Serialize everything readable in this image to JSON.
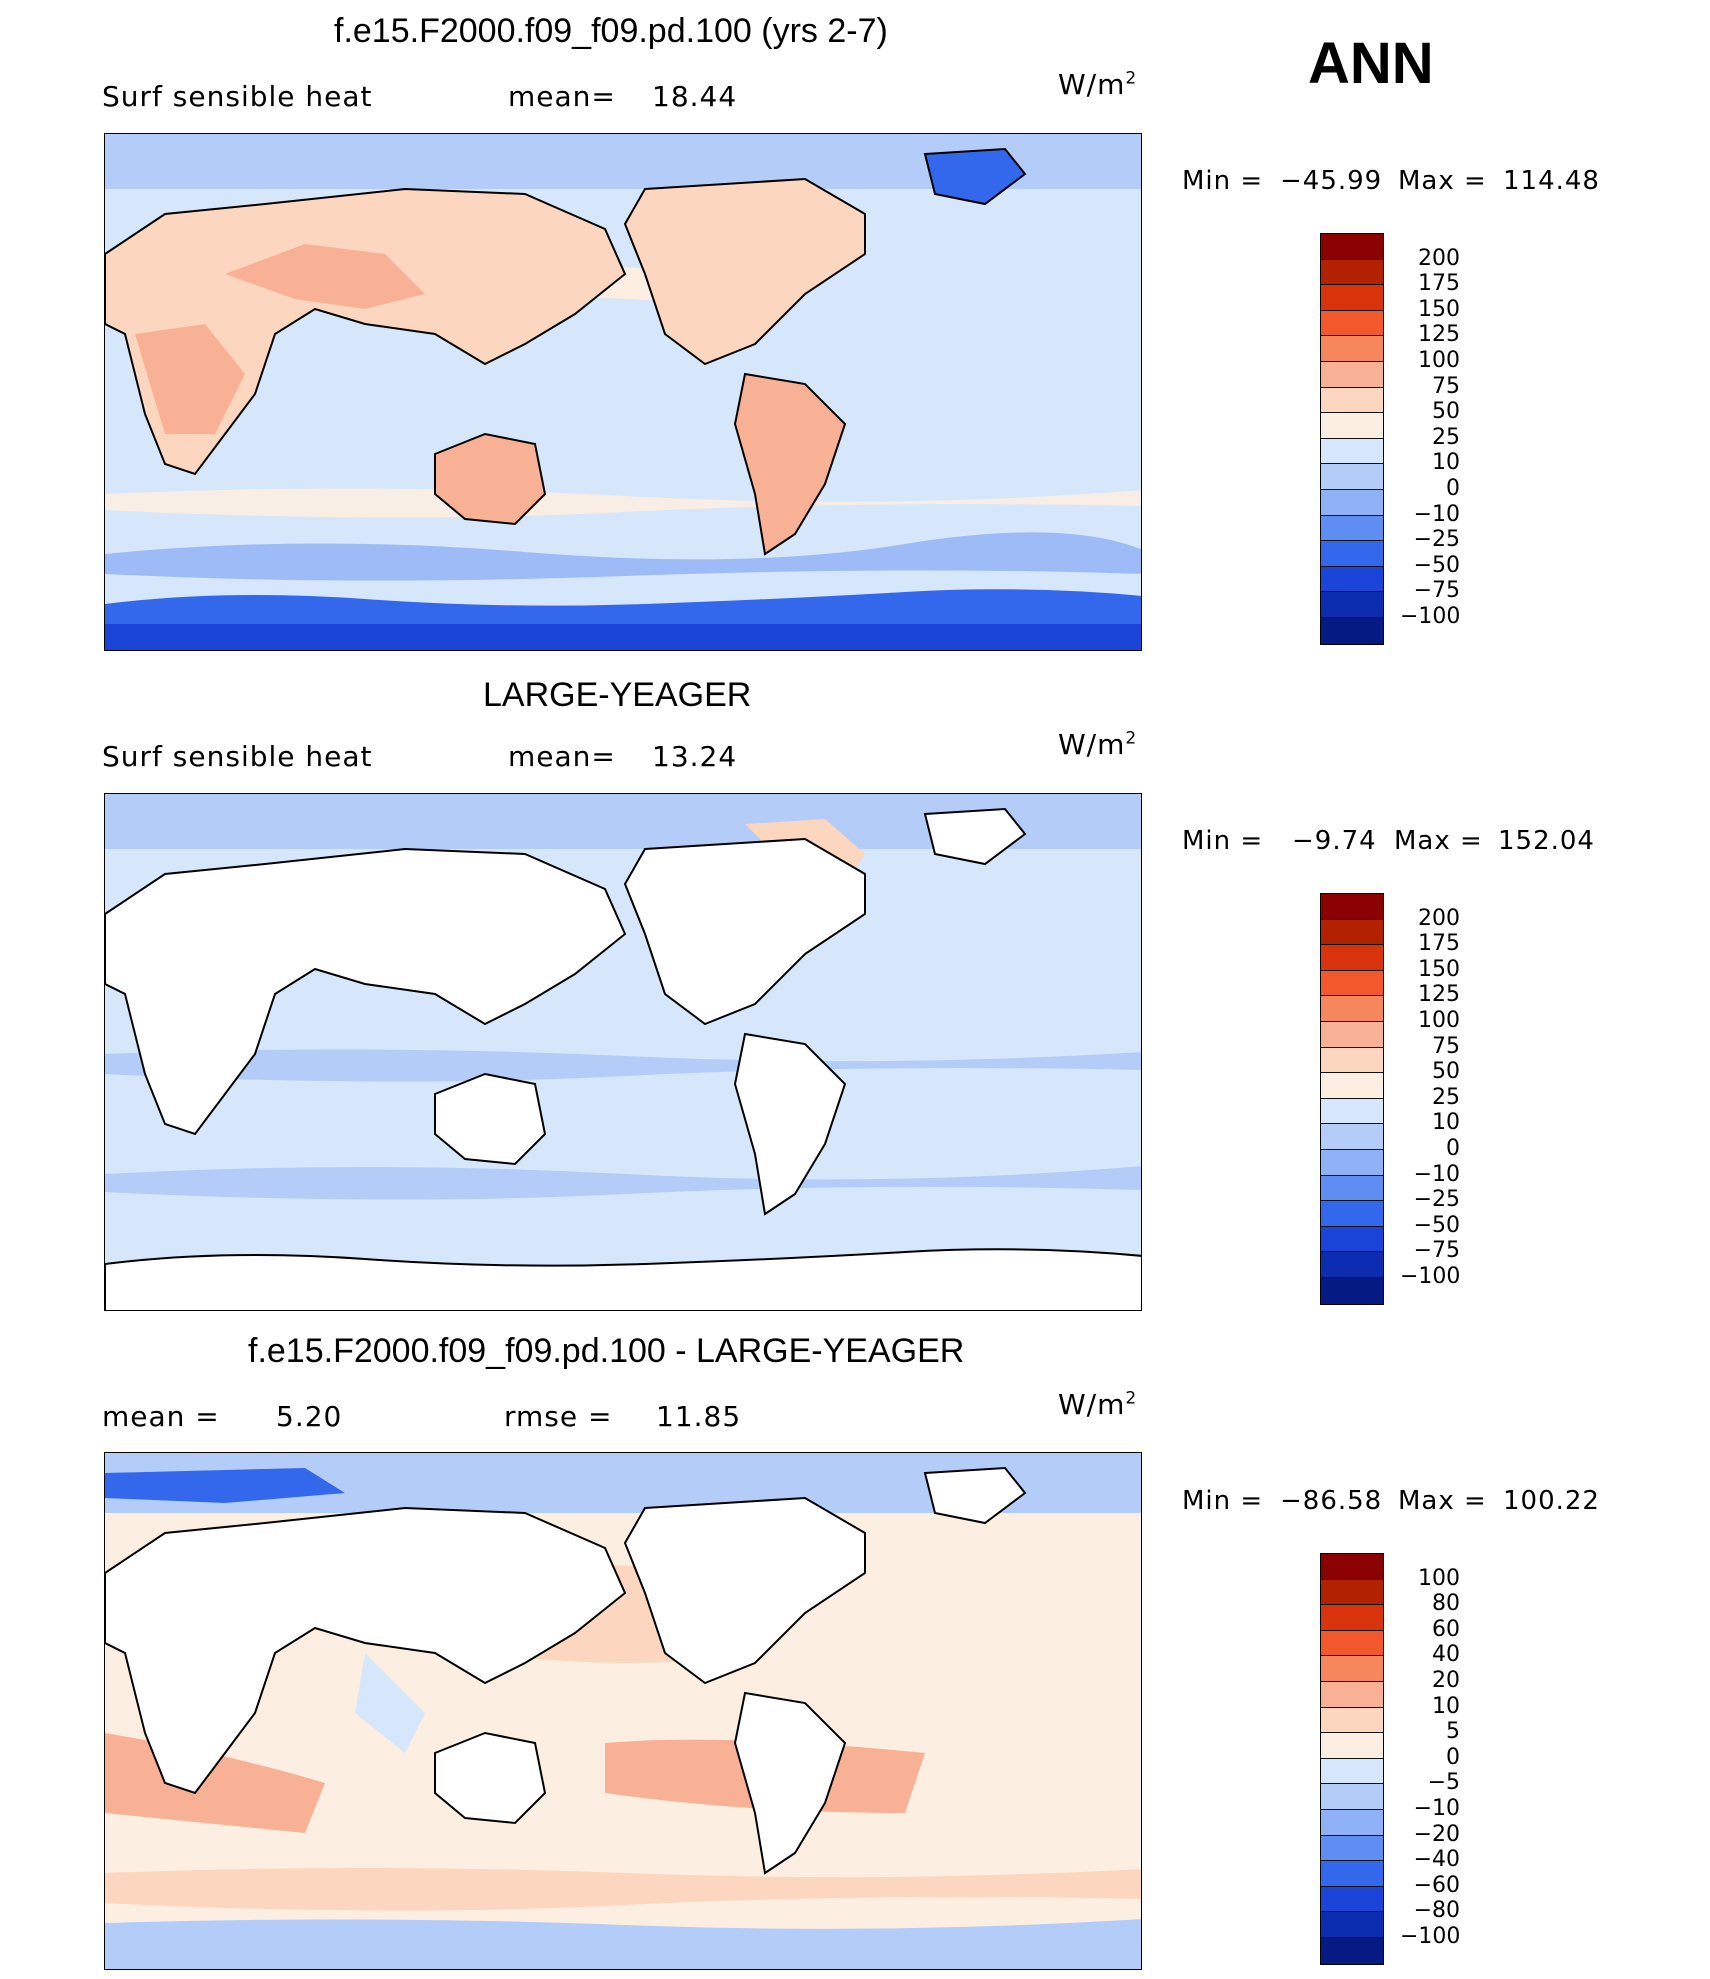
{
  "season": "ANN",
  "panels": [
    {
      "title": "f.e15.F2000.f09_f09.pd.100 (yrs 2-7)",
      "variable": "Surf  sensible  heat",
      "stat1_label": "mean=",
      "stat1_value": "18.44",
      "stat2_label": "",
      "stat2_value": "",
      "units_base": "W/m",
      "units_exp": "2",
      "min_label": "Min  =",
      "min_value": "−45.99",
      "max_label": "Max  =",
      "max_value": "114.48",
      "colorbar_labels": [
        "200",
        "175",
        "150",
        "125",
        "100",
        "75",
        "50",
        "25",
        "10",
        "0",
        "−10",
        "−25",
        "−50",
        "−75",
        "−100"
      ],
      "colorbar_colors": [
        "#8b0000",
        "#b22200",
        "#d8330a",
        "#f2582c",
        "#f6875c",
        "#f9b196",
        "#fcd6bf",
        "#fdeee2",
        "#d6e6fb",
        "#b3ccf8",
        "#8fb2f6",
        "#5f8ef2",
        "#3368ec",
        "#1a45d8",
        "#0c2db0",
        "#051a82"
      ]
    },
    {
      "title": "LARGE-YEAGER",
      "variable": "Surf  sensible  heat",
      "stat1_label": "mean=",
      "stat1_value": "13.24",
      "stat2_label": "",
      "stat2_value": "",
      "units_base": "W/m",
      "units_exp": "2",
      "min_label": "Min  =",
      "min_value": "−9.74",
      "max_label": "Max  =",
      "max_value": "152.04",
      "colorbar_labels": [
        "200",
        "175",
        "150",
        "125",
        "100",
        "75",
        "50",
        "25",
        "10",
        "0",
        "−10",
        "−25",
        "−50",
        "−75",
        "−100"
      ],
      "colorbar_colors": [
        "#8b0000",
        "#b22200",
        "#d8330a",
        "#f2582c",
        "#f6875c",
        "#f9b196",
        "#fcd6bf",
        "#fdeee2",
        "#d6e6fb",
        "#b3ccf8",
        "#8fb2f6",
        "#5f8ef2",
        "#3368ec",
        "#1a45d8",
        "#0c2db0",
        "#051a82"
      ]
    },
    {
      "title": "f.e15.F2000.f09_f09.pd.100 - LARGE-YEAGER",
      "variable": "",
      "stat1_label": "mean  =",
      "stat1_value": "5.20",
      "stat2_label": "rmse  =",
      "stat2_value": "11.85",
      "units_base": "W/m",
      "units_exp": "2",
      "min_label": "Min  =",
      "min_value": "−86.58",
      "max_label": "Max  =",
      "max_value": "100.22",
      "colorbar_labels": [
        "100",
        "80",
        "60",
        "40",
        "20",
        "10",
        "5",
        "0",
        "−5",
        "−10",
        "−20",
        "−40",
        "−60",
        "−80",
        "−100"
      ],
      "colorbar_colors": [
        "#8b0000",
        "#b22200",
        "#d8330a",
        "#f2582c",
        "#f6875c",
        "#f9b196",
        "#fcd6bf",
        "#fdeee2",
        "#d6e6fb",
        "#b3ccf8",
        "#8fb2f6",
        "#5f8ef2",
        "#3368ec",
        "#1a45d8",
        "#0c2db0",
        "#051a82"
      ]
    }
  ]
}
